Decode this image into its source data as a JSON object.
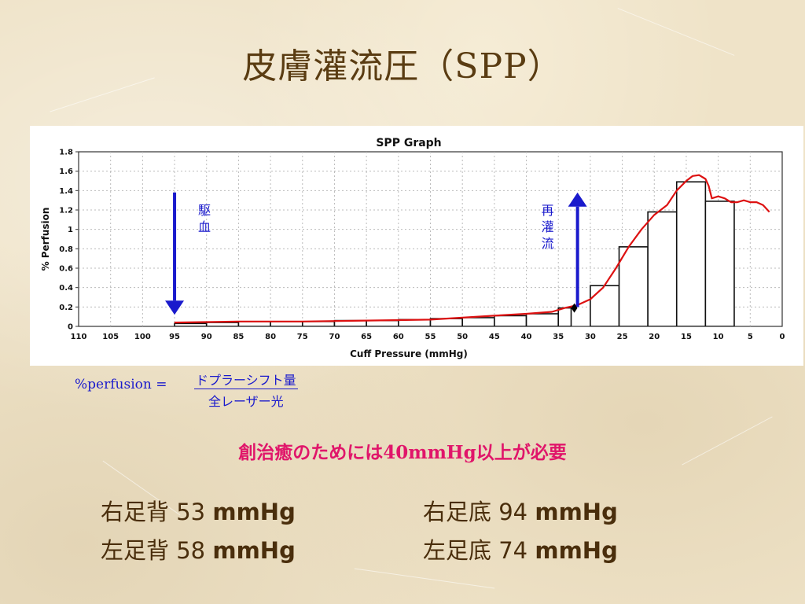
{
  "slide": {
    "title": "皮膚灌流圧（SPP）",
    "formula": {
      "label": "%perfusion =",
      "numerator": "ドプラーシフト量",
      "denominator": "全レーザー光"
    },
    "requirement": {
      "prefix": "創治癒のためには",
      "value": "40mmHg",
      "suffix": "以上が必要"
    },
    "measurements": [
      {
        "label": "右足背",
        "value": "53",
        "unit": "mmHg"
      },
      {
        "label": "右足底",
        "value": "94",
        "unit": "mmHg"
      },
      {
        "label": "左足背",
        "value": "58",
        "unit": "mmHg"
      },
      {
        "label": "左足底",
        "value": "74",
        "unit": "mmHg"
      }
    ]
  },
  "chart_data": {
    "type": "bar",
    "title": "SPP Graph",
    "xlabel": "Cuff Pressure (mmHg)",
    "ylabel": "% Perfusion",
    "xlim": [
      110,
      0
    ],
    "ylim": [
      0,
      1.8
    ],
    "x_ticks": [
      "110",
      "105",
      "100",
      "95",
      "90",
      "85",
      "80",
      "75",
      "70",
      "65",
      "60",
      "55",
      "50",
      "45",
      "40",
      "35",
      "30",
      "25",
      "20",
      "15",
      "10",
      "5",
      "0"
    ],
    "y_ticks": [
      "0",
      "0.2",
      "0.4",
      "0.6",
      "0.8",
      "1",
      "1.2",
      "1.4",
      "1.6",
      "1.8"
    ],
    "grid": true,
    "series": [
      {
        "kind": "bar",
        "bars": [
          {
            "x_from": 95,
            "x_to": 90,
            "value": 0.03
          },
          {
            "x_from": 90,
            "x_to": 85,
            "value": 0.04
          },
          {
            "x_from": 85,
            "x_to": 80,
            "value": 0.05
          },
          {
            "x_from": 80,
            "x_to": 75,
            "value": 0.05
          },
          {
            "x_from": 75,
            "x_to": 70,
            "value": 0.05
          },
          {
            "x_from": 70,
            "x_to": 65,
            "value": 0.06
          },
          {
            "x_from": 65,
            "x_to": 60,
            "value": 0.06
          },
          {
            "x_from": 60,
            "x_to": 55,
            "value": 0.07
          },
          {
            "x_from": 55,
            "x_to": 50,
            "value": 0.08
          },
          {
            "x_from": 50,
            "x_to": 45,
            "value": 0.09
          },
          {
            "x_from": 45,
            "x_to": 40,
            "value": 0.11
          },
          {
            "x_from": 40,
            "x_to": 35,
            "value": 0.13
          },
          {
            "x_from": 35,
            "x_to": 33,
            "value": 0.19
          },
          {
            "x_from": 30,
            "x_to": 25.5,
            "value": 0.42
          },
          {
            "x_from": 25.5,
            "x_to": 21,
            "value": 0.82
          },
          {
            "x_from": 21,
            "x_to": 16.5,
            "value": 1.18
          },
          {
            "x_from": 16.5,
            "x_to": 12,
            "value": 1.49
          },
          {
            "x_from": 12,
            "x_to": 7.5,
            "value": 1.29
          }
        ]
      },
      {
        "kind": "line",
        "color": "#dd1111",
        "x": [
          95,
          85,
          75,
          65,
          55,
          50,
          45,
          40,
          36,
          34,
          32,
          30,
          28,
          26,
          24,
          22,
          20,
          18,
          16.5,
          15,
          14,
          13,
          12,
          11.5,
          11,
          10,
          9,
          8,
          7,
          6,
          5,
          4,
          3,
          2
        ],
        "y": [
          0.04,
          0.05,
          0.05,
          0.06,
          0.07,
          0.09,
          0.11,
          0.13,
          0.15,
          0.19,
          0.22,
          0.28,
          0.4,
          0.6,
          0.82,
          1.0,
          1.15,
          1.25,
          1.4,
          1.5,
          1.55,
          1.56,
          1.52,
          1.45,
          1.32,
          1.34,
          1.32,
          1.28,
          1.28,
          1.3,
          1.28,
          1.28,
          1.25,
          1.18
        ]
      }
    ],
    "annotations": [
      {
        "text": "駆血",
        "direction": "down",
        "color": "#1a1acc",
        "x": 95,
        "y_from": 1.38,
        "y_to": 0.12
      },
      {
        "text": "再灌流",
        "direction": "up",
        "color": "#1a1acc",
        "x": 32,
        "y_from": 0.2,
        "y_to": 1.38
      },
      {
        "marker": "diamond",
        "color": "#000000",
        "x": 32.5,
        "y": 0.19
      }
    ]
  }
}
